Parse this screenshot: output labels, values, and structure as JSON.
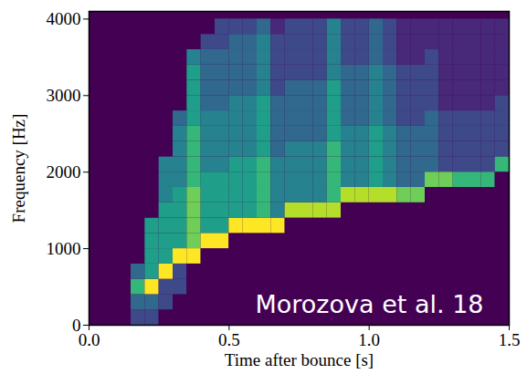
{
  "chart_data": {
    "type": "heatmap",
    "xlabel": "Time after bounce [s]",
    "ylabel": "Frequency [Hz]",
    "annotation": "Morozova et al. 18",
    "color": "viridis",
    "xlim": [
      0,
      1.5
    ],
    "ylim": [
      0,
      4100
    ],
    "xticks": [
      {
        "value": 0,
        "label": "0.0"
      },
      {
        "value": 0.5,
        "label": "0.5"
      },
      {
        "value": 1,
        "label": "1.0"
      },
      {
        "value": 1.5,
        "label": "1.5"
      }
    ],
    "yticks": [
      0,
      1000,
      2000,
      3000,
      4000
    ],
    "x": [
      0.025,
      0.075,
      0.125,
      0.175,
      0.225,
      0.275,
      0.325,
      0.375,
      0.425,
      0.475,
      0.525,
      0.575,
      0.625,
      0.675,
      0.725,
      0.775,
      0.825,
      0.875,
      0.925,
      0.975,
      1.025,
      1.075,
      1.125,
      1.175,
      1.225,
      1.275,
      1.325,
      1.375,
      1.425,
      1.475
    ],
    "y": [
      100,
      300,
      500,
      700,
      900,
      1100,
      1300,
      1500,
      1700,
      1900,
      2100,
      2300,
      2500,
      2700,
      2900,
      3100,
      3300,
      3500,
      3700,
      3900
    ],
    "cells": [
      [
        0,
        0,
        0,
        2,
        2,
        0,
        0,
        0,
        0,
        0,
        0,
        0,
        0,
        0,
        0,
        0,
        0,
        0,
        0,
        0,
        0,
        0,
        0,
        0,
        0,
        0,
        0,
        0,
        0,
        0
      ],
      [
        0,
        0,
        0,
        3,
        3,
        2,
        0,
        0,
        0,
        0,
        0,
        0,
        0,
        0,
        0,
        0,
        0,
        0,
        0,
        0,
        0,
        0,
        0,
        0,
        0,
        0,
        0,
        0,
        0,
        0
      ],
      [
        0,
        0,
        0,
        6,
        9,
        2,
        2,
        0,
        0,
        0,
        0,
        0,
        0,
        0,
        0,
        0,
        0,
        0,
        0,
        0,
        0,
        0,
        0,
        0,
        0,
        0,
        0,
        0,
        0,
        0
      ],
      [
        0,
        0,
        0,
        3,
        5,
        9,
        2,
        0,
        0,
        0,
        0,
        0,
        0,
        0,
        0,
        0,
        0,
        0,
        0,
        0,
        0,
        0,
        0,
        0,
        0,
        0,
        0,
        0,
        0,
        0
      ],
      [
        0,
        0,
        0,
        0,
        5,
        5,
        9,
        9,
        0,
        0,
        0,
        0,
        0,
        0,
        0,
        0,
        0,
        0,
        0,
        0,
        0,
        0,
        0,
        0,
        0,
        0,
        0,
        0,
        0,
        0
      ],
      [
        0,
        0,
        0,
        0,
        5,
        5,
        5,
        7,
        9,
        9,
        0,
        0,
        0,
        0,
        0,
        0,
        0,
        0,
        0,
        0,
        0,
        0,
        0,
        0,
        0,
        0,
        0,
        0,
        0,
        0
      ],
      [
        0,
        0,
        0,
        0,
        5,
        5,
        5,
        7,
        5,
        5,
        9,
        9,
        9,
        9,
        0,
        0,
        0,
        0,
        0,
        0,
        0,
        0,
        0,
        0,
        0,
        0,
        0,
        0,
        0,
        0
      ],
      [
        0,
        0,
        0,
        0,
        0,
        5,
        5,
        7,
        5,
        5,
        5,
        5,
        6,
        4,
        8,
        8,
        8,
        8,
        0,
        0,
        0,
        0,
        0,
        0,
        0,
        0,
        0,
        0,
        0,
        0
      ],
      [
        0,
        0,
        0,
        0,
        0,
        4,
        5,
        7,
        5,
        5,
        5,
        5,
        6,
        4,
        4,
        4,
        4,
        6,
        8,
        8,
        8,
        8,
        7,
        7,
        0,
        0,
        0,
        0,
        0,
        0
      ],
      [
        0,
        0,
        0,
        0,
        0,
        4,
        4,
        6,
        5,
        5,
        5,
        5,
        6,
        4,
        4,
        4,
        4,
        6,
        4,
        4,
        5,
        4,
        3,
        3,
        7,
        7,
        6,
        6,
        6,
        0
      ],
      [
        0,
        0,
        0,
        0,
        0,
        4,
        4,
        6,
        4,
        4,
        5,
        5,
        6,
        4,
        4,
        4,
        4,
        6,
        4,
        4,
        5,
        4,
        3,
        3,
        3,
        2,
        2,
        2,
        2,
        6
      ],
      [
        0,
        0,
        0,
        0,
        0,
        0,
        4,
        6,
        4,
        4,
        4,
        4,
        5,
        3,
        4,
        4,
        4,
        6,
        4,
        4,
        5,
        4,
        3,
        3,
        3,
        2,
        2,
        2,
        2,
        2
      ],
      [
        0,
        0,
        0,
        0,
        0,
        0,
        4,
        6,
        4,
        4,
        4,
        4,
        5,
        3,
        3,
        3,
        3,
        5,
        4,
        4,
        5,
        4,
        3,
        3,
        3,
        2,
        2,
        2,
        2,
        2
      ],
      [
        0,
        0,
        0,
        0,
        0,
        0,
        3,
        5,
        4,
        4,
        4,
        4,
        5,
        3,
        3,
        3,
        3,
        5,
        3,
        3,
        4,
        3,
        2,
        2,
        3,
        2,
        2,
        2,
        2,
        2
      ],
      [
        0,
        0,
        0,
        0,
        0,
        0,
        0,
        5,
        3,
        3,
        4,
        4,
        5,
        3,
        3,
        3,
        3,
        5,
        3,
        3,
        4,
        3,
        2,
        2,
        2,
        1,
        1,
        1,
        1,
        2
      ],
      [
        0,
        0,
        0,
        0,
        0,
        0,
        0,
        5,
        3,
        3,
        3,
        3,
        4,
        2,
        3,
        3,
        3,
        5,
        3,
        3,
        4,
        3,
        2,
        2,
        2,
        1,
        1,
        1,
        1,
        1
      ],
      [
        0,
        0,
        0,
        0,
        0,
        0,
        0,
        5,
        3,
        3,
        3,
        3,
        4,
        2,
        2,
        2,
        2,
        4,
        3,
        3,
        4,
        3,
        2,
        2,
        2,
        1,
        1,
        1,
        1,
        1
      ],
      [
        0,
        0,
        0,
        0,
        0,
        0,
        0,
        4,
        3,
        3,
        3,
        3,
        4,
        2,
        2,
        2,
        2,
        4,
        2,
        2,
        3,
        2,
        1,
        1,
        2,
        1,
        1,
        1,
        1,
        1
      ],
      [
        0,
        0,
        0,
        0,
        0,
        0,
        0,
        0,
        2,
        2,
        3,
        3,
        4,
        2,
        2,
        2,
        2,
        4,
        2,
        2,
        3,
        2,
        1,
        1,
        1,
        1,
        1,
        1,
        1,
        1
      ],
      [
        0,
        0,
        0,
        0,
        0,
        0,
        0,
        0,
        0,
        2,
        2,
        2,
        3,
        1,
        2,
        2,
        2,
        4,
        2,
        2,
        3,
        2,
        1,
        1,
        1,
        1,
        1,
        1,
        1,
        1
      ]
    ]
  }
}
